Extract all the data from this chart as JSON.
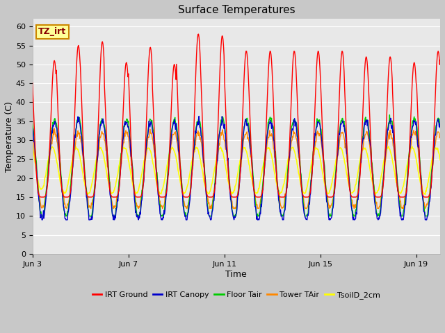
{
  "title": "Surface Temperatures",
  "xlabel": "Time",
  "ylabel": "Temperature (C)",
  "ylim": [
    0,
    62
  ],
  "yticks": [
    0,
    5,
    10,
    15,
    20,
    25,
    30,
    35,
    40,
    45,
    50,
    55,
    60
  ],
  "legend_entries": [
    "IRT Ground",
    "IRT Canopy",
    "Floor Tair",
    "Tower TAir",
    "TsoilD_2cm"
  ],
  "legend_colors": [
    "#ff0000",
    "#0000cc",
    "#00cc00",
    "#ff8800",
    "#ffff00"
  ],
  "annotation_text": "TZ_irt",
  "annotation_bg": "#ffff99",
  "annotation_border": "#cc8800",
  "annotation_text_color": "#880000",
  "tick_labels": [
    "Jun 3",
    "Jun 7",
    "Jun 11",
    "Jun 15",
    "Jun 19"
  ],
  "tick_positions": [
    0,
    4,
    8,
    12,
    16
  ],
  "xlim": [
    0,
    17
  ],
  "fig_bg": "#c8c8c8",
  "plot_bg": "#e8e8e8",
  "grid_color": "#ffffff"
}
